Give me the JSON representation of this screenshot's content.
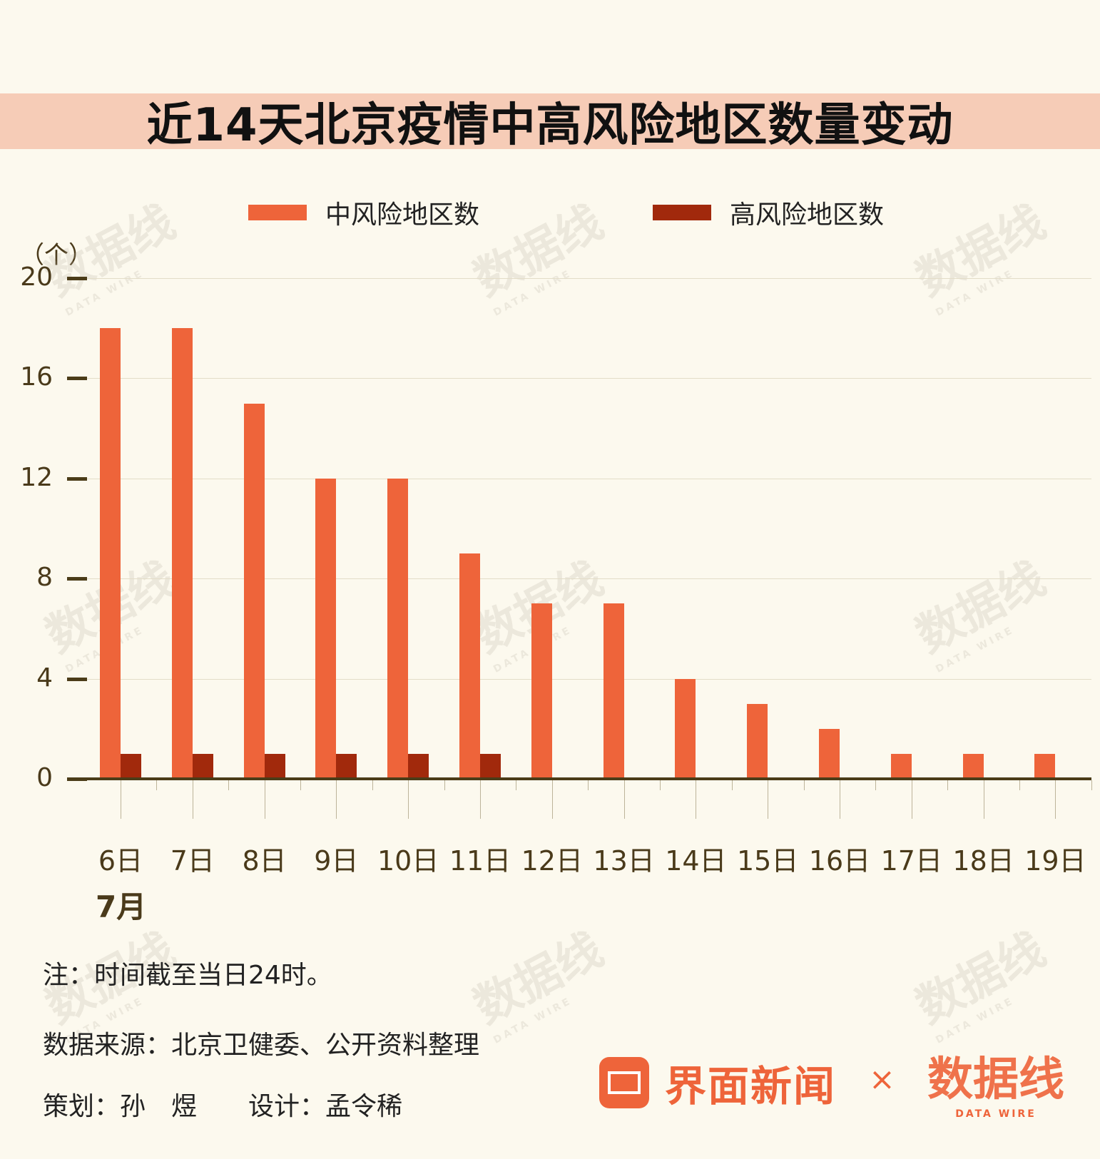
{
  "title": "近14天北京疫情中高风险地区数量变动",
  "legend": [
    {
      "label": "中风险地区数",
      "color": "#ee643a"
    },
    {
      "label": "高风险地区数",
      "color": "#a1290c"
    }
  ],
  "unit": "（个）",
  "month_label": "7月",
  "notes": {
    "note": "注：时间截至当日24时。",
    "source": "数据来源：北京卫健委、公开资料整理",
    "credits": "策划：孙　煜　　设计：孟令稀"
  },
  "brand": {
    "primary": "界面新闻",
    "separator": "×",
    "secondary": "数据线",
    "secondary_sub": "DATA WIRE"
  },
  "watermark": {
    "text": "数据线",
    "sub": "DATA WIRE"
  },
  "chart_data": {
    "type": "bar",
    "title": "近14天北京疫情中高风险地区数量变动",
    "xlabel": "7月",
    "ylabel": "（个）",
    "categories": [
      "6日",
      "7日",
      "8日",
      "9日",
      "10日",
      "11日",
      "12日",
      "13日",
      "14日",
      "15日",
      "16日",
      "17日",
      "18日",
      "19日"
    ],
    "series": [
      {
        "name": "中风险地区数",
        "color": "#ee643a",
        "values": [
          18,
          18,
          15,
          12,
          12,
          9,
          7,
          7,
          4,
          3,
          2,
          1,
          1,
          1
        ]
      },
      {
        "name": "高风险地区数",
        "color": "#a1290c",
        "values": [
          1,
          1,
          1,
          1,
          1,
          1,
          0,
          0,
          0,
          0,
          0,
          0,
          0,
          0
        ]
      }
    ],
    "yticks": [
      0,
      4,
      8,
      12,
      16,
      20
    ],
    "ylim": [
      0,
      20
    ],
    "grid": true,
    "legend_position": "top"
  }
}
